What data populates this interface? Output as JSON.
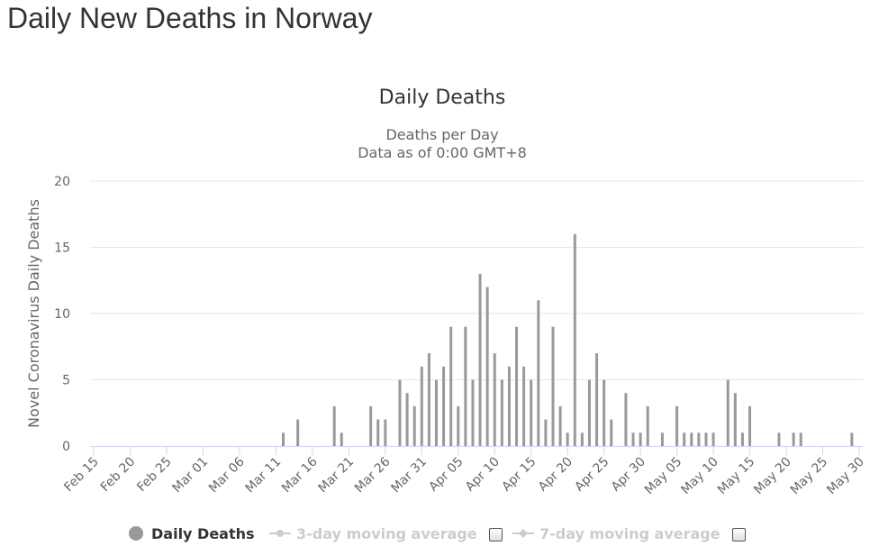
{
  "page": {
    "title": "Daily New Deaths in Norway"
  },
  "colors": {
    "bar": "#999999",
    "grid": "#e6e6e6",
    "axis": "#ccd6eb",
    "text": "#666666",
    "inactive": "#cccccc"
  },
  "chart_data": {
    "type": "bar",
    "title": "Daily Deaths",
    "subtitle_lines": [
      "Deaths per Day",
      "Data as of 0:00 GMT+8"
    ],
    "ylabel": "Novel Coronavirus Daily Deaths",
    "xlabel": "",
    "ylim": [
      0,
      20
    ],
    "yticks": [
      0,
      5,
      10,
      15,
      20
    ],
    "grid": true,
    "legend_position": "bottom",
    "x_start": "Feb 15",
    "tick_labels": [
      "Feb 15",
      "Feb 20",
      "Feb 25",
      "Mar 01",
      "Mar 06",
      "Mar 11",
      "Mar 16",
      "Mar 21",
      "Mar 26",
      "Mar 31",
      "Apr 05",
      "Apr 10",
      "Apr 15",
      "Apr 20",
      "Apr 25",
      "Apr 30",
      "May 05",
      "May 10",
      "May 15",
      "May 20",
      "May 25",
      "May 30"
    ],
    "categories": [
      "Feb 15",
      "Feb 16",
      "Feb 17",
      "Feb 18",
      "Feb 19",
      "Feb 20",
      "Feb 21",
      "Feb 22",
      "Feb 23",
      "Feb 24",
      "Feb 25",
      "Feb 26",
      "Feb 27",
      "Feb 28",
      "Feb 29",
      "Mar 01",
      "Mar 02",
      "Mar 03",
      "Mar 04",
      "Mar 05",
      "Mar 06",
      "Mar 07",
      "Mar 08",
      "Mar 09",
      "Mar 10",
      "Mar 11",
      "Mar 12",
      "Mar 13",
      "Mar 14",
      "Mar 15",
      "Mar 16",
      "Mar 17",
      "Mar 18",
      "Mar 19",
      "Mar 20",
      "Mar 21",
      "Mar 22",
      "Mar 23",
      "Mar 24",
      "Mar 25",
      "Mar 26",
      "Mar 27",
      "Mar 28",
      "Mar 29",
      "Mar 30",
      "Mar 31",
      "Apr 01",
      "Apr 02",
      "Apr 03",
      "Apr 04",
      "Apr 05",
      "Apr 06",
      "Apr 07",
      "Apr 08",
      "Apr 09",
      "Apr 10",
      "Apr 11",
      "Apr 12",
      "Apr 13",
      "Apr 14",
      "Apr 15",
      "Apr 16",
      "Apr 17",
      "Apr 18",
      "Apr 19",
      "Apr 20",
      "Apr 21",
      "Apr 22",
      "Apr 23",
      "Apr 24",
      "Apr 25",
      "Apr 26",
      "Apr 27",
      "Apr 28",
      "Apr 29",
      "Apr 30",
      "May 01",
      "May 02",
      "May 03",
      "May 04",
      "May 05",
      "May 06",
      "May 07",
      "May 08",
      "May 09",
      "May 10",
      "May 11",
      "May 12",
      "May 13",
      "May 14",
      "May 15",
      "May 16",
      "May 17",
      "May 18",
      "May 19",
      "May 20",
      "May 21",
      "May 22",
      "May 23",
      "May 24",
      "May 25",
      "May 26",
      "May 27",
      "May 28",
      "May 29",
      "May 30"
    ],
    "series": [
      {
        "name": "Daily Deaths",
        "color": "#999999",
        "values": [
          0,
          0,
          0,
          0,
          0,
          0,
          0,
          0,
          0,
          0,
          0,
          0,
          0,
          0,
          0,
          0,
          0,
          0,
          0,
          0,
          0,
          0,
          0,
          0,
          0,
          0,
          1,
          0,
          2,
          0,
          0,
          0,
          0,
          3,
          1,
          0,
          0,
          0,
          3,
          2,
          2,
          0,
          5,
          4,
          3,
          6,
          7,
          5,
          6,
          9,
          3,
          9,
          5,
          13,
          12,
          7,
          5,
          6,
          9,
          6,
          5,
          11,
          2,
          9,
          3,
          1,
          16,
          1,
          5,
          7,
          5,
          2,
          0,
          4,
          1,
          1,
          3,
          0,
          1,
          0,
          3,
          1,
          1,
          1,
          1,
          1,
          0,
          5,
          4,
          1,
          3,
          0,
          0,
          0,
          1,
          0,
          1,
          1,
          0,
          0,
          0,
          0,
          0,
          0,
          1,
          0
        ]
      },
      {
        "name": "3-day moving average",
        "visible": false
      },
      {
        "name": "7-day moving average",
        "visible": false
      }
    ]
  }
}
